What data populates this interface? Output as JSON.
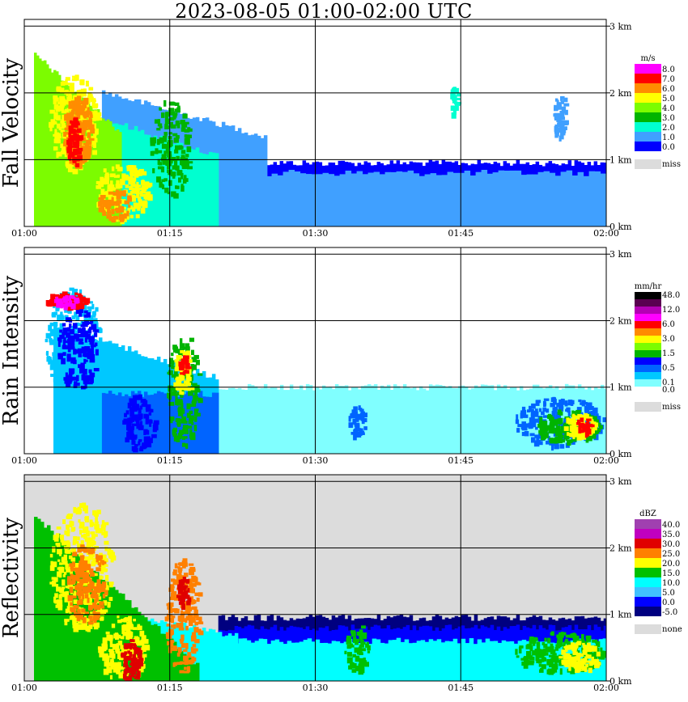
{
  "title": "2023-08-05   01:00-02:00 UTC",
  "x_ticks": [
    "01:00",
    "01:15",
    "01:30",
    "01:45",
    "02:00"
  ],
  "y_ticks": [
    "0 km",
    "1 km",
    "2 km",
    "3 km"
  ],
  "panels": [
    {
      "id": "fall-velocity",
      "title": "Fall Velocity",
      "unit": "m/s",
      "background": "#ffffff",
      "colorbar": [
        {
          "label": "8.0",
          "color": "#ff00ff"
        },
        {
          "label": "7.0",
          "color": "#ff0000"
        },
        {
          "label": "6.0",
          "color": "#ff8c00"
        },
        {
          "label": "5.0",
          "color": "#ffff00"
        },
        {
          "label": "4.0",
          "color": "#7cfc00"
        },
        {
          "label": "3.0",
          "color": "#00b400"
        },
        {
          "label": "2.0",
          "color": "#00ffd0"
        },
        {
          "label": "1.0",
          "color": "#40a0ff"
        },
        {
          "label": "0.0",
          "color": "#0000ff"
        }
      ],
      "missing_label": "miss",
      "missing_color": "#dcdcdc"
    },
    {
      "id": "rain-intensity",
      "title": "Rain Intensity",
      "unit": "mm/hr",
      "background": "#ffffff",
      "colorbar": [
        {
          "label": "48.0",
          "color": "#000000"
        },
        {
          "label": "",
          "color": "#5a0050"
        },
        {
          "label": "12.0",
          "color": "#b400b4"
        },
        {
          "label": "",
          "color": "#ff00ff"
        },
        {
          "label": "6.0",
          "color": "#ff0000"
        },
        {
          "label": "",
          "color": "#ff8c00"
        },
        {
          "label": "3.0",
          "color": "#ffff00"
        },
        {
          "label": "",
          "color": "#7cfc00"
        },
        {
          "label": "1.5",
          "color": "#00b400"
        },
        {
          "label": "",
          "color": "#0000ff"
        },
        {
          "label": "0.5",
          "color": "#0064ff"
        },
        {
          "label": "",
          "color": "#00c8ff"
        },
        {
          "label": "0.1",
          "color": "#80ffff"
        },
        {
          "label": "0.0",
          "color": "#ffffff"
        }
      ],
      "missing_label": "miss",
      "missing_color": "#dcdcdc"
    },
    {
      "id": "reflectivity",
      "title": "Reflectivity",
      "unit": "dBZ",
      "background": "#dcdcdc",
      "colorbar": [
        {
          "label": "40.0",
          "color": "#a040b0"
        },
        {
          "label": "35.0",
          "color": "#c000c0"
        },
        {
          "label": "30.0",
          "color": "#e00000"
        },
        {
          "label": "25.0",
          "color": "#ff8000"
        },
        {
          "label": "20.0",
          "color": "#ffff00"
        },
        {
          "label": "15.0",
          "color": "#00c000"
        },
        {
          "label": "10.0",
          "color": "#00ffff"
        },
        {
          "label": "5.0",
          "color": "#40c0ff"
        },
        {
          "label": "0.0",
          "color": "#0000ff"
        },
        {
          "label": "-5.0",
          "color": "#000080"
        }
      ],
      "missing_label": "none",
      "missing_color": "#dcdcdc"
    }
  ],
  "chart_data": [
    {
      "type": "heatmap",
      "title": "Fall Velocity",
      "unit": "m/s",
      "x_range": [
        "01:00",
        "02:00"
      ],
      "y_range_km": [
        0,
        3
      ],
      "features": [
        {
          "t0": "01:00",
          "t1": "01:02",
          "top_km": 2.7,
          "value_ms": 6.5
        },
        {
          "t0": "01:03",
          "t1": "01:12",
          "top_km": 2.4,
          "value_ms": 5.0
        },
        {
          "t0": "01:15",
          "t1": "01:22",
          "top_km": 2.0,
          "value_ms": 4.0
        },
        {
          "t0": "01:22",
          "t1": "02:00",
          "top_km": 1.0,
          "value_ms": 0.7
        }
      ]
    },
    {
      "type": "heatmap",
      "title": "Rain Intensity",
      "unit": "mm/hr",
      "x_range": [
        "01:00",
        "02:00"
      ],
      "y_range_km": [
        0,
        3
      ],
      "features": [
        {
          "t0": "01:01",
          "t1": "01:04",
          "top_km": 2.4,
          "value": 6.0
        },
        {
          "t0": "01:05",
          "t1": "01:12",
          "top_km": 1.5,
          "value": 0.5
        },
        {
          "t0": "01:14",
          "t1": "01:17",
          "top_km": 1.4,
          "value": 3.0
        },
        {
          "t0": "01:20",
          "t1": "02:00",
          "top_km": 0.9,
          "value": 0.1
        },
        {
          "t0": "01:53",
          "t1": "01:59",
          "top_km": 0.6,
          "value": 6.0
        }
      ]
    },
    {
      "type": "heatmap",
      "title": "Reflectivity",
      "unit": "dBZ",
      "x_range": [
        "01:00",
        "02:00"
      ],
      "y_range_km": [
        0,
        3
      ],
      "features": [
        {
          "t0": "01:01",
          "t1": "01:05",
          "top_km": 2.2,
          "value": 25.0
        },
        {
          "t0": "01:05",
          "t1": "01:16",
          "top_km": 1.0,
          "value": 20.0
        },
        {
          "t0": "01:14",
          "t1": "01:16",
          "top_km": 1.4,
          "value": 30.0
        },
        {
          "t0": "01:20",
          "t1": "02:00",
          "top_km": 0.95,
          "value": 5.0
        },
        {
          "t0": "01:52",
          "t1": "01:59",
          "top_km": 0.7,
          "value": 15.0
        }
      ]
    }
  ]
}
